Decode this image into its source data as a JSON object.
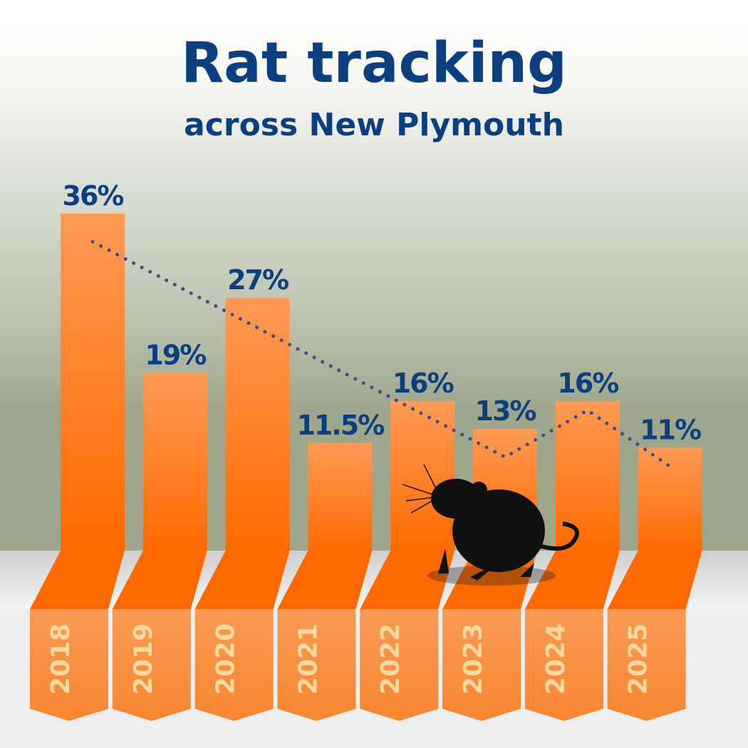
{
  "chart_data": {
    "type": "bar",
    "title": "Rat tracking",
    "subtitle": "across New Plymouth",
    "categories": [
      "2018",
      "2019",
      "2020",
      "2021",
      "2022",
      "2023",
      "2024",
      "2025"
    ],
    "values": [
      36,
      19,
      27,
      11.5,
      16,
      13,
      16,
      11
    ],
    "value_labels": [
      "36%",
      "19%",
      "27%",
      "11.5%",
      "16%",
      "13%",
      "16%",
      "11%"
    ],
    "color": "#ff7a1a",
    "trend": {
      "color": "#3d4f82",
      "values": [
        33,
        28.4,
        23.8,
        19.2,
        14.6,
        10,
        15,
        9
      ]
    }
  }
}
